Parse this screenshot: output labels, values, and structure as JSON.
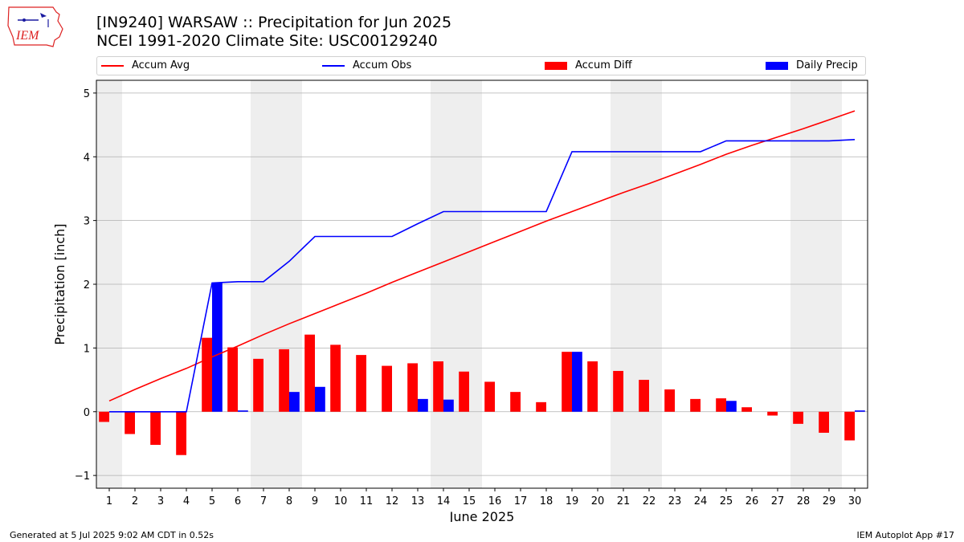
{
  "header": {
    "title_line1": "[IN9240] WARSAW :: Precipitation for Jun 2025",
    "title_line2": "NCEI 1991-2020 Climate Site: USC00129240",
    "logo_text": "IEM"
  },
  "legend": {
    "accum_avg": "Accum Avg",
    "accum_obs": "Accum Obs",
    "accum_diff": "Accum Diff",
    "daily_precip": "Daily Precip"
  },
  "footer": {
    "left": "Generated at 5 Jul 2025 9:02 AM CDT in 0.52s",
    "right": "IEM Autoplot App #17"
  },
  "colors": {
    "avg": "#ff0000",
    "obs": "#0000ff",
    "diff": "#ff0000",
    "daily": "#0000ff",
    "weekend_band": "#eeeeee",
    "grid": "#b0b0b0"
  },
  "chart_data": {
    "type": "bar",
    "xlabel": "June 2025",
    "ylabel": "Precipitation [inch]",
    "ylim": [
      -1.2,
      5.2
    ],
    "yticks": [
      -1,
      0,
      1,
      2,
      3,
      4,
      5
    ],
    "grid": "horizontal",
    "legend_position": "top",
    "days": [
      1,
      2,
      3,
      4,
      5,
      6,
      7,
      8,
      9,
      10,
      11,
      12,
      13,
      14,
      15,
      16,
      17,
      18,
      19,
      20,
      21,
      22,
      23,
      24,
      25,
      26,
      27,
      28,
      29,
      30
    ],
    "weekend_days": [
      1,
      7,
      8,
      14,
      15,
      21,
      22,
      28,
      29
    ],
    "series": [
      {
        "name": "Accum Avg",
        "kind": "line",
        "values": [
          0.17,
          0.35,
          0.52,
          0.68,
          0.86,
          1.03,
          1.21,
          1.38,
          1.54,
          1.7,
          1.86,
          2.03,
          2.19,
          2.35,
          2.51,
          2.67,
          2.83,
          2.99,
          3.14,
          3.29,
          3.44,
          3.58,
          3.73,
          3.88,
          4.04,
          4.18,
          4.31,
          4.44,
          4.58,
          4.72
        ]
      },
      {
        "name": "Accum Obs",
        "kind": "line",
        "values": [
          0.0,
          0.0,
          0.0,
          0.0,
          2.02,
          2.04,
          2.04,
          2.36,
          2.75,
          2.75,
          2.75,
          2.75,
          2.95,
          3.14,
          3.14,
          3.14,
          3.14,
          3.14,
          4.08,
          4.08,
          4.08,
          4.08,
          4.08,
          4.08,
          4.25,
          4.25,
          4.25,
          4.25,
          4.25,
          4.27
        ]
      },
      {
        "name": "Accum Diff",
        "kind": "bar",
        "values": [
          -0.16,
          -0.35,
          -0.52,
          -0.68,
          1.16,
          1.01,
          0.83,
          0.98,
          1.21,
          1.05,
          0.89,
          0.72,
          0.76,
          0.79,
          0.63,
          0.47,
          0.31,
          0.15,
          0.94,
          0.79,
          0.64,
          0.5,
          0.35,
          0.2,
          0.21,
          0.07,
          -0.06,
          -0.19,
          -0.33,
          -0.45
        ]
      },
      {
        "name": "Daily Precip",
        "kind": "bar",
        "values": [
          0.0,
          0.0,
          0.0,
          0.0,
          2.02,
          0.02,
          0.0,
          0.31,
          0.39,
          0.0,
          0.0,
          0.0,
          0.2,
          0.19,
          0.0,
          0.0,
          0.0,
          0.0,
          0.94,
          0.0,
          0.0,
          0.0,
          0.0,
          0.0,
          0.17,
          0.0,
          0.0,
          0.0,
          0.0,
          0.02
        ]
      }
    ]
  }
}
